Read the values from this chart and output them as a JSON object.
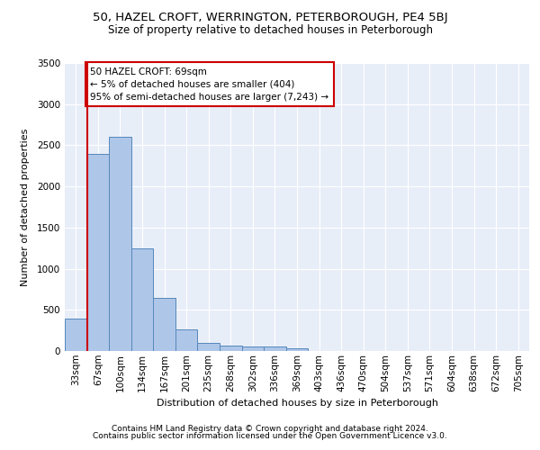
{
  "title_line1": "50, HAZEL CROFT, WERRINGTON, PETERBOROUGH, PE4 5BJ",
  "title_line2": "Size of property relative to detached houses in Peterborough",
  "xlabel": "Distribution of detached houses by size in Peterborough",
  "ylabel": "Number of detached properties",
  "footer_line1": "Contains HM Land Registry data © Crown copyright and database right 2024.",
  "footer_line2": "Contains public sector information licensed under the Open Government Licence v3.0.",
  "annotation_title": "50 HAZEL CROFT: 69sqm",
  "annotation_line1": "← 5% of detached houses are smaller (404)",
  "annotation_line2": "95% of semi-detached houses are larger (7,243) →",
  "bar_labels": [
    "33sqm",
    "67sqm",
    "100sqm",
    "134sqm",
    "167sqm",
    "201sqm",
    "235sqm",
    "268sqm",
    "302sqm",
    "336sqm",
    "369sqm",
    "403sqm",
    "436sqm",
    "470sqm",
    "504sqm",
    "537sqm",
    "571sqm",
    "604sqm",
    "638sqm",
    "672sqm",
    "705sqm"
  ],
  "bar_values": [
    390,
    2400,
    2600,
    1250,
    640,
    260,
    100,
    65,
    60,
    50,
    35,
    0,
    0,
    0,
    0,
    0,
    0,
    0,
    0,
    0,
    0
  ],
  "bar_color": "#aec6e8",
  "bar_edge_color": "#5588bb",
  "vline_x": 1,
  "vline_color": "#cc0000",
  "annotation_box_color": "#cc0000",
  "ylim": [
    0,
    3500
  ],
  "yticks": [
    0,
    500,
    1000,
    1500,
    2000,
    2500,
    3000,
    3500
  ],
  "background_color": "#e8eef8",
  "title_fontsize": 9.5,
  "subtitle_fontsize": 8.5,
  "axis_label_fontsize": 8,
  "tick_fontsize": 7.5,
  "footer_fontsize": 6.5,
  "annotation_fontsize": 7.5
}
